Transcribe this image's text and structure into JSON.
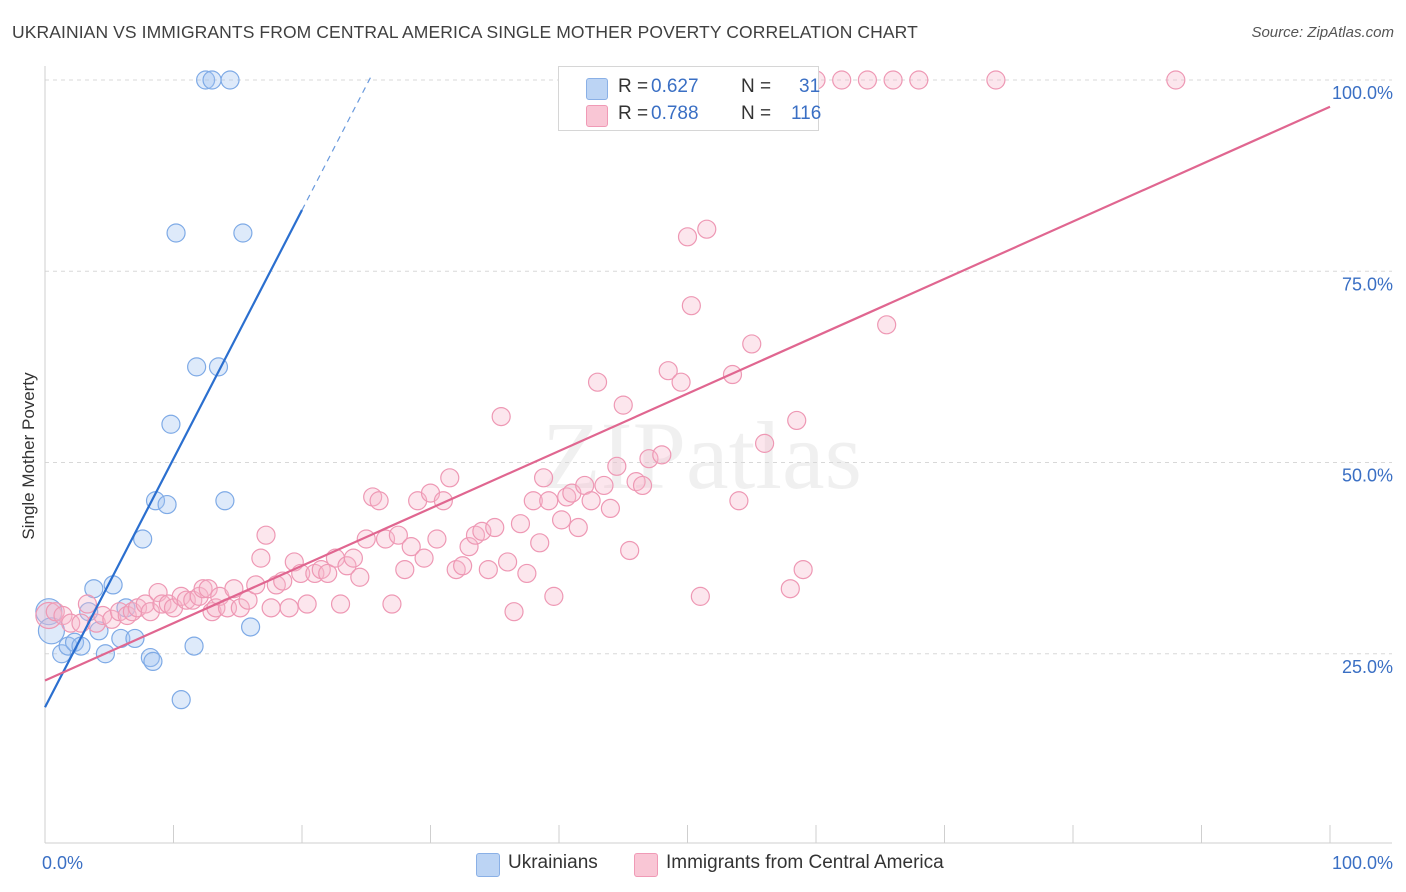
{
  "title": "UKRAINIAN VS IMMIGRANTS FROM CENTRAL AMERICA SINGLE MOTHER POVERTY CORRELATION CHART",
  "source": "Source: ZipAtlas.com",
  "watermark": "ZIPatlas",
  "legend": {
    "r_label": "R =",
    "n_label": "N =",
    "rows": [
      {
        "r": "0.627",
        "n": "31",
        "color": "#a9c8f0"
      },
      {
        "r": "0.788",
        "n": "116",
        "color": "#f7b7ca"
      }
    ]
  },
  "bottom_legend": [
    {
      "label": "Ukrainians",
      "color": "#a9c8f0"
    },
    {
      "label": "Immigrants from Central America",
      "color": "#f7b7ca"
    }
  ],
  "colors": {
    "blue_line": "#2b6fcf",
    "pink_line": "#e06690",
    "blue_fill": "rgba(160,196,240,0.35)",
    "blue_stroke": "#7eaae6",
    "pink_fill": "rgba(247,183,202,0.35)",
    "pink_stroke": "#ee98b4",
    "axis_text": "#3a6fc4"
  },
  "chart_data": {
    "type": "scatter",
    "xlabel": "",
    "ylabel": "Single Mother Poverty",
    "xlim": [
      0,
      100
    ],
    "ylim": [
      0,
      100
    ],
    "x_tick_labels": [
      "0.0%",
      "100.0%"
    ],
    "y_ticks": [
      25,
      50,
      75,
      100
    ],
    "y_tick_labels": [
      "25.0%",
      "50.0%",
      "75.0%",
      "100.0%"
    ],
    "grid": true,
    "series": [
      {
        "name": "Ukrainians",
        "r": 0.627,
        "n": 31,
        "trend": {
          "x0": 0,
          "y0": 18.0,
          "x1": 20,
          "y1": 83.0,
          "dash_to_x": 25.5
        },
        "points": [
          [
            0.3,
            30.5
          ],
          [
            0.5,
            28
          ],
          [
            1.3,
            25
          ],
          [
            1.8,
            26
          ],
          [
            2.3,
            26.5
          ],
          [
            2.8,
            26
          ],
          [
            3.4,
            30.5
          ],
          [
            3.8,
            33.5
          ],
          [
            4.2,
            28
          ],
          [
            4.7,
            25
          ],
          [
            5.3,
            34
          ],
          [
            5.9,
            27
          ],
          [
            6.3,
            31
          ],
          [
            7.0,
            27
          ],
          [
            7.6,
            40
          ],
          [
            8.2,
            24.5
          ],
          [
            8.4,
            24
          ],
          [
            8.6,
            45
          ],
          [
            9.5,
            44.5
          ],
          [
            9.8,
            55
          ],
          [
            10.2,
            80
          ],
          [
            10.6,
            19
          ],
          [
            11.6,
            26
          ],
          [
            11.8,
            62.5
          ],
          [
            12.5,
            100
          ],
          [
            13.0,
            100
          ],
          [
            13.5,
            62.5
          ],
          [
            14.0,
            45
          ],
          [
            14.4,
            100
          ],
          [
            15.4,
            80
          ],
          [
            16.0,
            28.5
          ]
        ]
      },
      {
        "name": "Immigrants from Central America",
        "r": 0.788,
        "n": 116,
        "trend": {
          "x0": 0,
          "y0": 21.5,
          "x1": 100,
          "y1": 96.5
        },
        "points": [
          [
            0.3,
            30
          ],
          [
            0.8,
            30.5
          ],
          [
            1.4,
            30
          ],
          [
            2.0,
            29
          ],
          [
            2.8,
            29
          ],
          [
            3.3,
            31.5
          ],
          [
            4.0,
            29
          ],
          [
            4.5,
            30
          ],
          [
            5.2,
            29.5
          ],
          [
            5.8,
            30.5
          ],
          [
            6.4,
            30
          ],
          [
            6.8,
            30.5
          ],
          [
            7.2,
            31
          ],
          [
            7.8,
            31.5
          ],
          [
            8.2,
            30.5
          ],
          [
            8.8,
            33
          ],
          [
            9.1,
            31.5
          ],
          [
            9.6,
            31.5
          ],
          [
            10.0,
            31
          ],
          [
            10.6,
            32.5
          ],
          [
            11.0,
            32
          ],
          [
            11.5,
            32
          ],
          [
            12.0,
            32.5
          ],
          [
            12.3,
            33.5
          ],
          [
            12.7,
            33.5
          ],
          [
            13.0,
            30.5
          ],
          [
            13.3,
            31
          ],
          [
            13.6,
            32.5
          ],
          [
            14.2,
            31
          ],
          [
            14.7,
            33.5
          ],
          [
            15.2,
            31
          ],
          [
            15.8,
            32
          ],
          [
            16.4,
            34
          ],
          [
            16.8,
            37.5
          ],
          [
            17.2,
            40.5
          ],
          [
            17.6,
            31
          ],
          [
            18.0,
            34
          ],
          [
            18.5,
            34.5
          ],
          [
            19.0,
            31
          ],
          [
            19.4,
            37
          ],
          [
            19.9,
            35.5
          ],
          [
            20.4,
            31.5
          ],
          [
            21.0,
            35.5
          ],
          [
            21.5,
            36
          ],
          [
            22.0,
            35.5
          ],
          [
            22.6,
            37.5
          ],
          [
            23.0,
            31.5
          ],
          [
            23.5,
            36.5
          ],
          [
            24.0,
            37.5
          ],
          [
            24.5,
            35
          ],
          [
            25.0,
            40
          ],
          [
            25.5,
            45.5
          ],
          [
            26.0,
            45
          ],
          [
            26.5,
            40
          ],
          [
            27.0,
            31.5
          ],
          [
            27.5,
            40.5
          ],
          [
            28.0,
            36
          ],
          [
            28.5,
            39
          ],
          [
            29.0,
            45
          ],
          [
            29.5,
            37.5
          ],
          [
            30.0,
            46
          ],
          [
            30.5,
            40
          ],
          [
            31.0,
            45
          ],
          [
            31.5,
            48
          ],
          [
            32.0,
            36
          ],
          [
            32.5,
            36.5
          ],
          [
            33.0,
            39
          ],
          [
            33.5,
            40.5
          ],
          [
            34.0,
            41
          ],
          [
            34.5,
            36
          ],
          [
            35.0,
            41.5
          ],
          [
            35.5,
            56
          ],
          [
            36.0,
            37
          ],
          [
            36.5,
            30.5
          ],
          [
            37.0,
            42
          ],
          [
            37.5,
            35.5
          ],
          [
            38.0,
            45
          ],
          [
            38.5,
            39.5
          ],
          [
            38.8,
            48
          ],
          [
            39.2,
            45
          ],
          [
            39.6,
            32.5
          ],
          [
            40.2,
            42.5
          ],
          [
            40.6,
            45.5
          ],
          [
            41.0,
            46
          ],
          [
            41.5,
            41.5
          ],
          [
            42.0,
            47
          ],
          [
            42.5,
            45
          ],
          [
            43.0,
            60.5
          ],
          [
            43.5,
            47
          ],
          [
            44.0,
            44
          ],
          [
            44.5,
            49.5
          ],
          [
            45.0,
            57.5
          ],
          [
            45.5,
            38.5
          ],
          [
            46.0,
            47.5
          ],
          [
            46.5,
            47
          ],
          [
            47.0,
            50.5
          ],
          [
            48.0,
            51
          ],
          [
            48.5,
            62
          ],
          [
            49.5,
            60.5
          ],
          [
            50.0,
            79.5
          ],
          [
            50.3,
            70.5
          ],
          [
            51.0,
            32.5
          ],
          [
            51.5,
            80.5
          ],
          [
            53.5,
            61.5
          ],
          [
            54.0,
            45
          ],
          [
            55.0,
            65.5
          ],
          [
            56.0,
            52.5
          ],
          [
            58.0,
            33.5
          ],
          [
            58.5,
            55.5
          ],
          [
            59.0,
            36
          ],
          [
            60.0,
            100
          ],
          [
            62.0,
            100
          ],
          [
            64.0,
            100
          ],
          [
            65.5,
            68
          ],
          [
            66.0,
            100
          ],
          [
            68.0,
            100
          ],
          [
            74.0,
            100
          ],
          [
            88.0,
            100
          ]
        ]
      }
    ]
  }
}
